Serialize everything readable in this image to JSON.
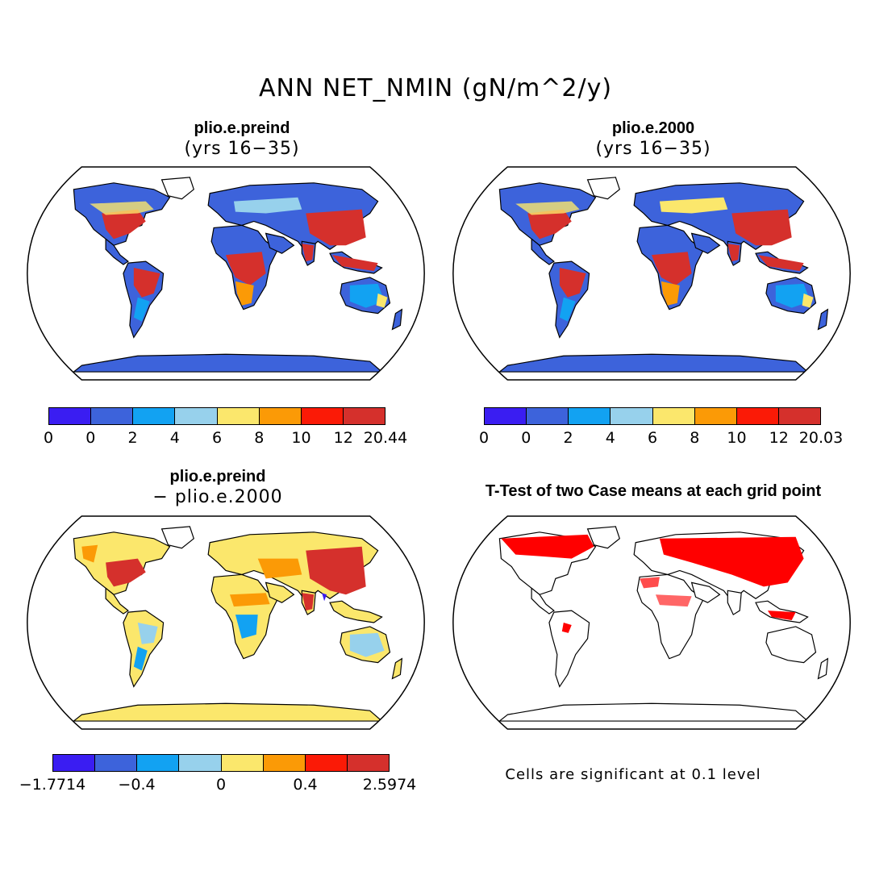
{
  "title": "ANN NET_NMIN (gN/m^2/y)",
  "panels": {
    "top_left": {
      "title": "plio.e.preind",
      "subtitle": "(yrs 16−35)"
    },
    "top_right": {
      "title": "plio.e.2000",
      "subtitle": "(yrs 16−35)"
    },
    "bottom_left": {
      "title": "plio.e.preind",
      "subtitle": "− plio.e.2000"
    },
    "bottom_right": {
      "title": "T-Test of two Case means at each grid point",
      "note": "Cells are significant at 0.1 level"
    }
  },
  "colorbars": {
    "top_left": {
      "colors": [
        "#3a1df2",
        "#3d63db",
        "#12a2f2",
        "#97d1ec",
        "#fbe76c",
        "#fb9a06",
        "#fb1a06",
        "#d5302c"
      ],
      "ticks": [
        "0",
        "0",
        "2",
        "4",
        "6",
        "8",
        "10",
        "12",
        "20.44"
      ]
    },
    "top_right": {
      "colors": [
        "#3a1df2",
        "#3d63db",
        "#12a2f2",
        "#97d1ec",
        "#fbe76c",
        "#fb9a06",
        "#fb1a06",
        "#d5302c"
      ],
      "ticks": [
        "0",
        "0",
        "2",
        "4",
        "6",
        "8",
        "10",
        "12",
        "20.03"
      ]
    },
    "bottom_left": {
      "colors": [
        "#3a1df2",
        "#3d63db",
        "#12a2f2",
        "#97d1ec",
        "#fbe76c",
        "#fb9a06",
        "#fb1a06",
        "#d5302c"
      ],
      "ticks": [
        "−1.7714",
        "",
        "−0.4",
        "",
        "0",
        "",
        "0.4",
        "",
        "2.5974"
      ]
    }
  }
}
